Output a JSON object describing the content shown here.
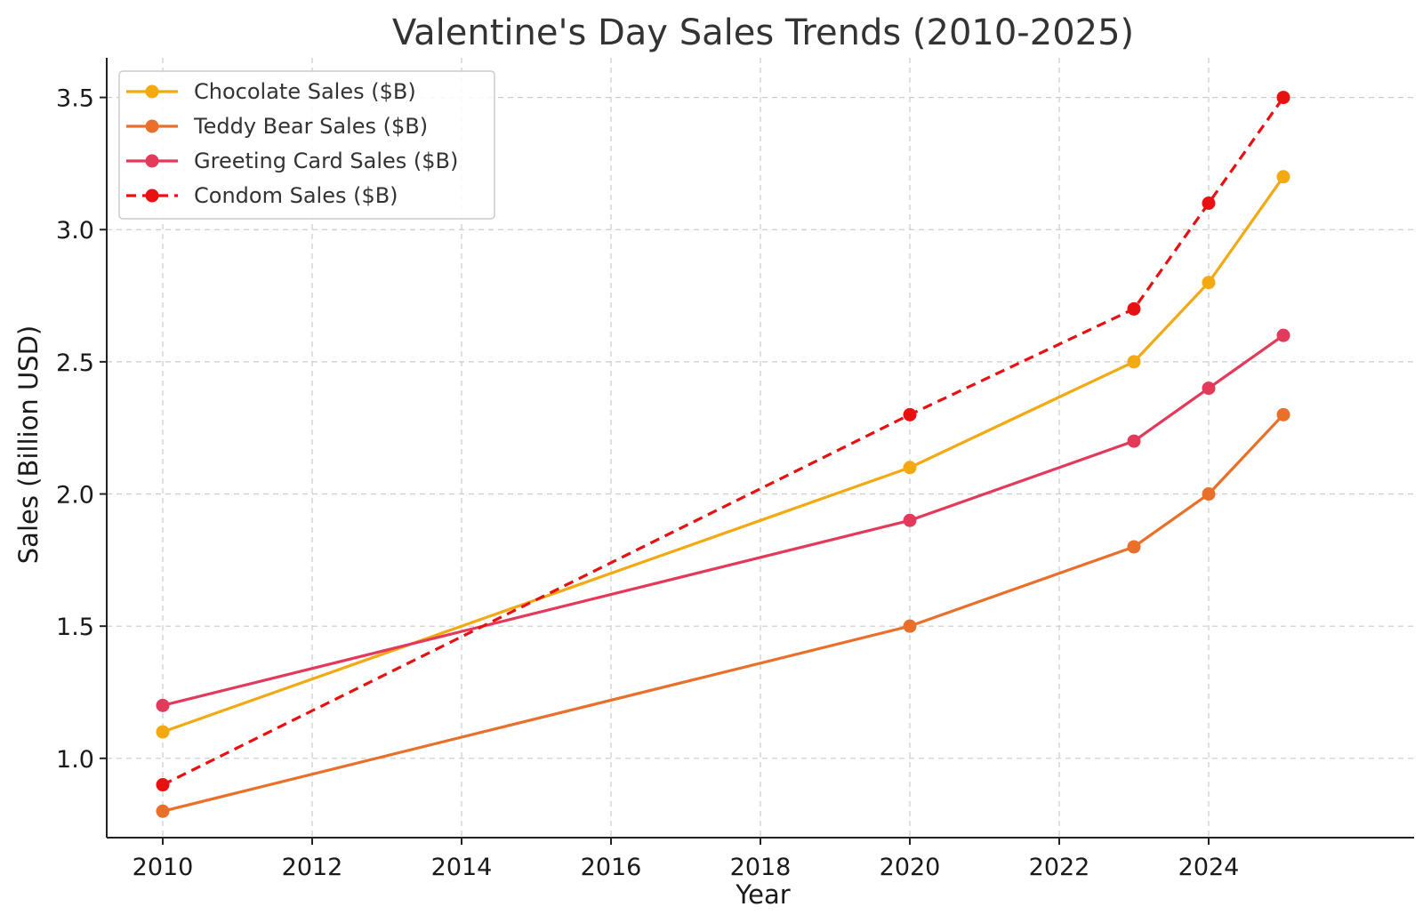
{
  "chart_data": {
    "type": "line",
    "title": "Valentine's Day Sales Trends (2010-2025)",
    "xlabel": "Year",
    "ylabel": "Sales (Billion USD)",
    "x": [
      2010,
      2020,
      2023,
      2024,
      2025
    ],
    "xlim": [
      2009.25,
      2026.75
    ],
    "ylim": [
      0.7,
      3.65
    ],
    "xticks": [
      2010,
      2012,
      2014,
      2016,
      2018,
      2020,
      2022,
      2024
    ],
    "xtick_labels": [
      "2010",
      "2012",
      "2014",
      "2016",
      "2018",
      "2020",
      "2022",
      "2024"
    ],
    "yticks": [
      1.0,
      1.5,
      2.0,
      2.5,
      3.0,
      3.5
    ],
    "ytick_labels": [
      "1.0",
      "1.5",
      "2.0",
      "2.5",
      "3.0",
      "3.5"
    ],
    "grid": true,
    "legend_position": "top-left",
    "series": [
      {
        "name": "Chocolate Sales ($B)",
        "values": [
          1.1,
          2.1,
          2.5,
          2.8,
          3.2
        ],
        "color": "#f2a912",
        "dashed": false
      },
      {
        "name": "Teddy Bear Sales ($B)",
        "values": [
          0.8,
          1.5,
          1.8,
          2.0,
          2.3
        ],
        "color": "#e8702a",
        "dashed": false
      },
      {
        "name": "Greeting Card Sales ($B)",
        "values": [
          1.2,
          1.9,
          2.2,
          2.4,
          2.6
        ],
        "color": "#e33a5c",
        "dashed": false
      },
      {
        "name": "Condom Sales ($B)",
        "values": [
          0.9,
          2.3,
          2.7,
          3.1,
          3.5
        ],
        "color": "#e81010",
        "dashed": true
      }
    ]
  }
}
